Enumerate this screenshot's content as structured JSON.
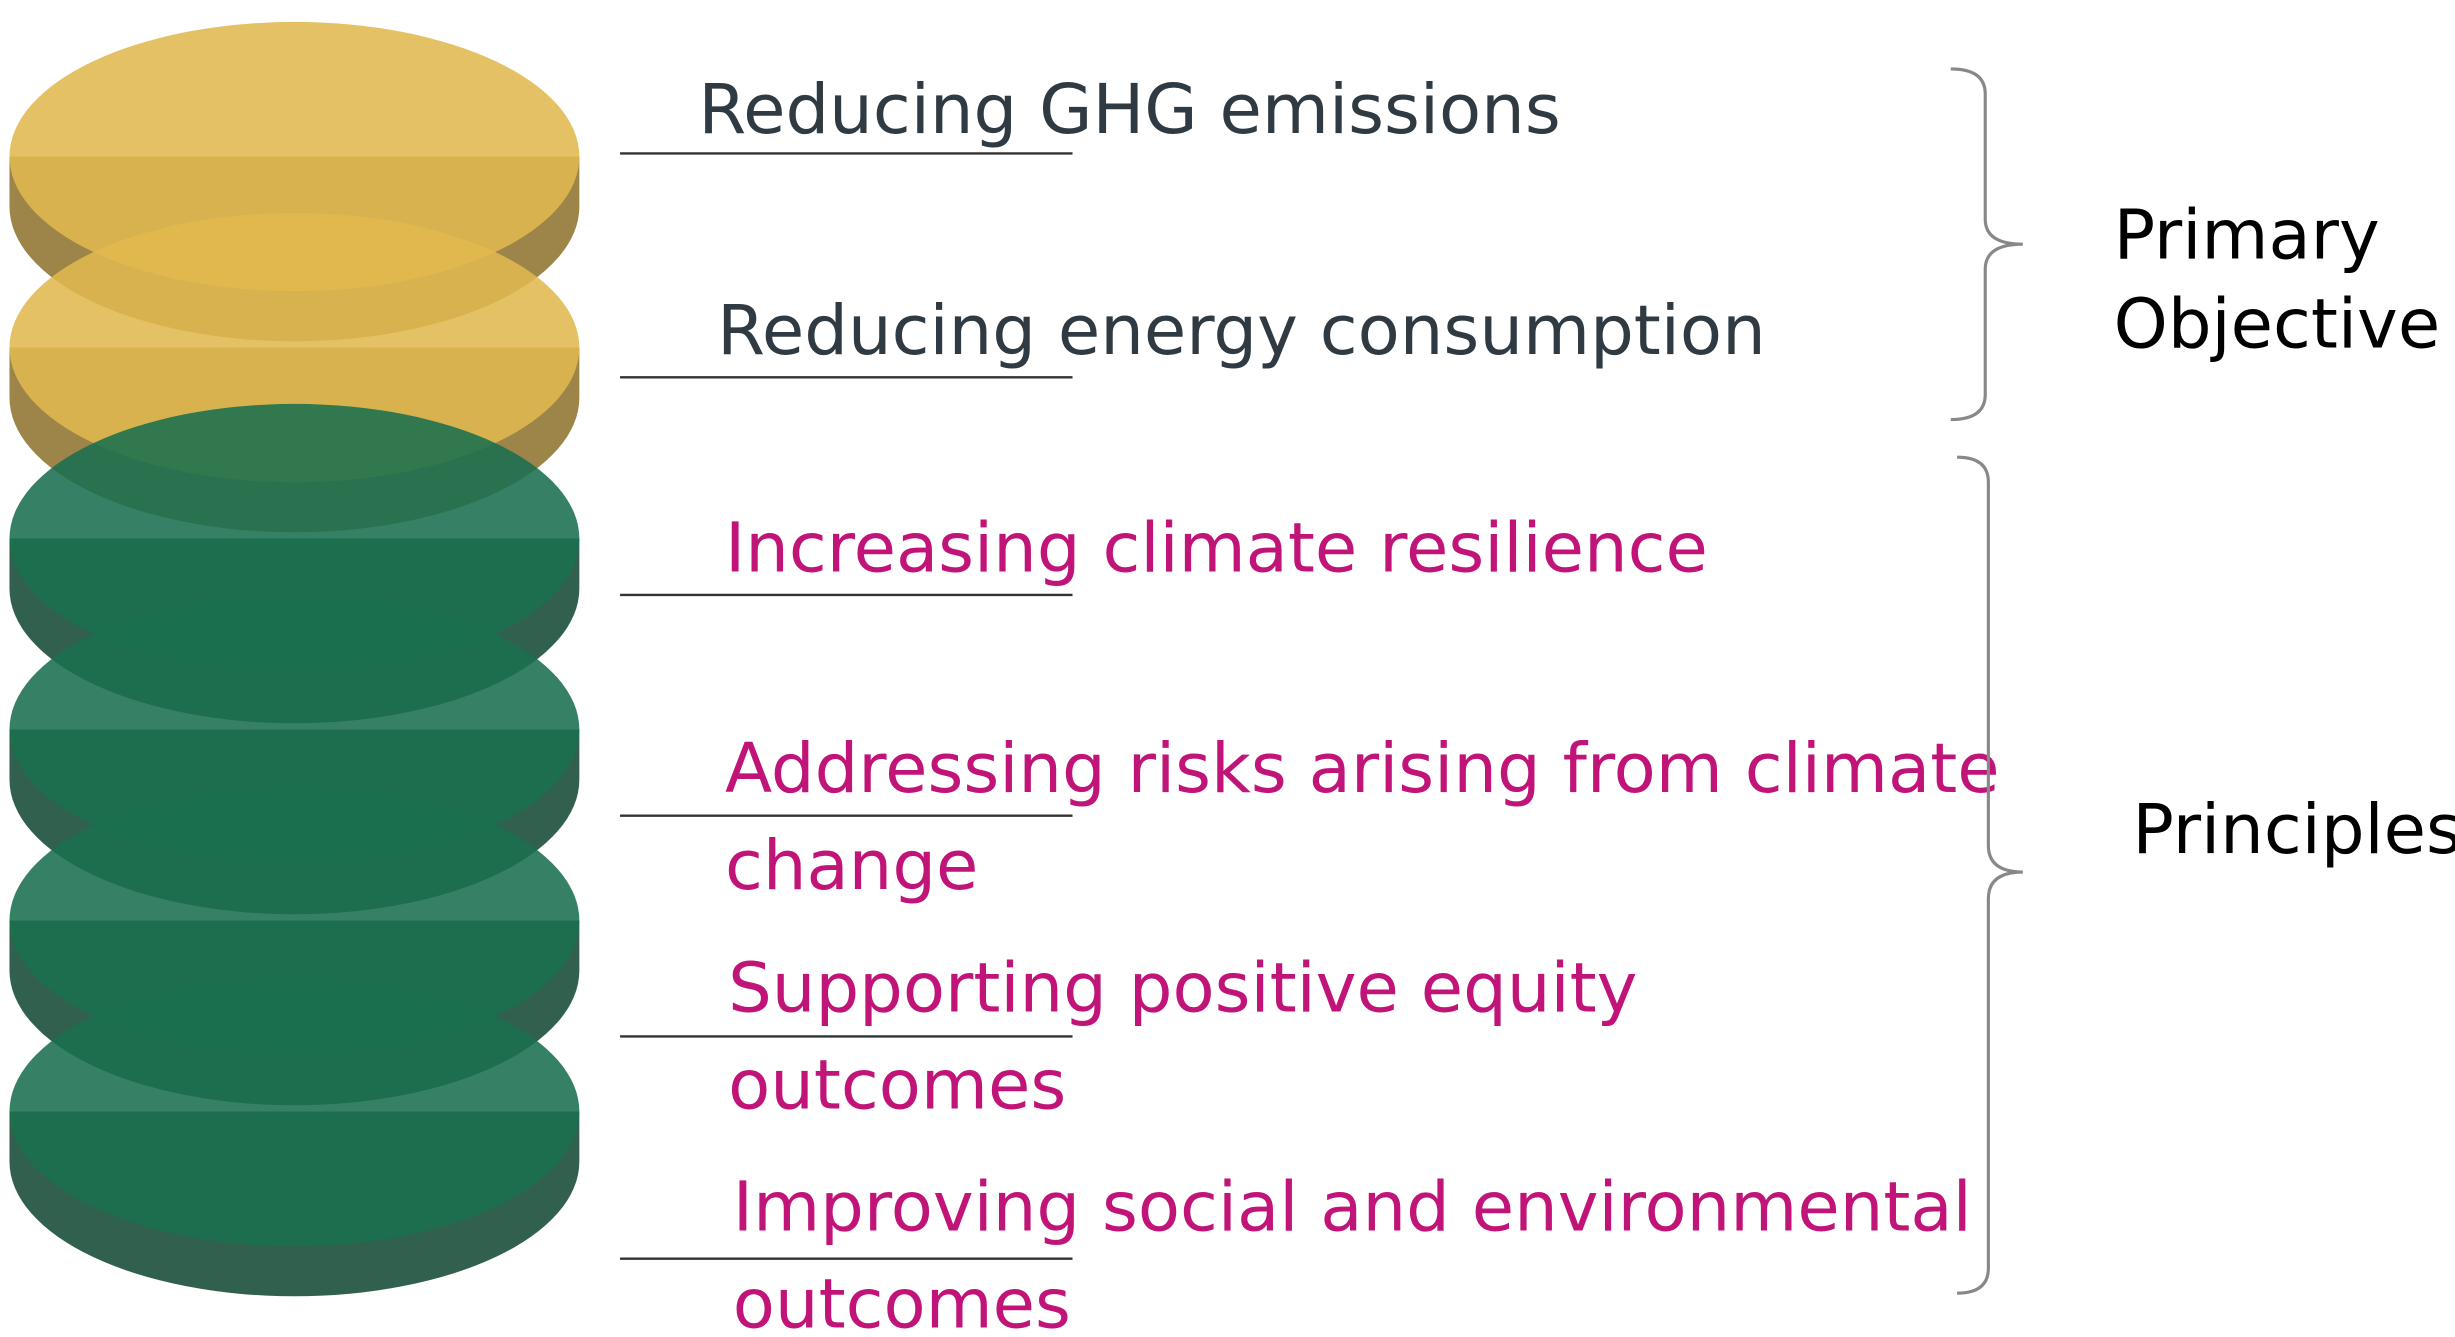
{
  "items": [
    {
      "lines": [
        "Reducing GHG emissions"
      ]
    },
    {
      "lines": [
        "Reducing energy consumption"
      ]
    },
    {
      "lines": [
        "Increasing climate resilience"
      ]
    },
    {
      "lines": [
        "Addressing risks arising from climate",
        "change"
      ]
    },
    {
      "lines": [
        "Supporting positive equity",
        "outcomes"
      ]
    },
    {
      "lines": [
        "Improving social and environmental",
        "outcomes"
      ]
    }
  ],
  "groups": [
    {
      "lines": [
        "Primary",
        "Objective"
      ]
    },
    {
      "lines": [
        "Principles"
      ]
    }
  ]
}
